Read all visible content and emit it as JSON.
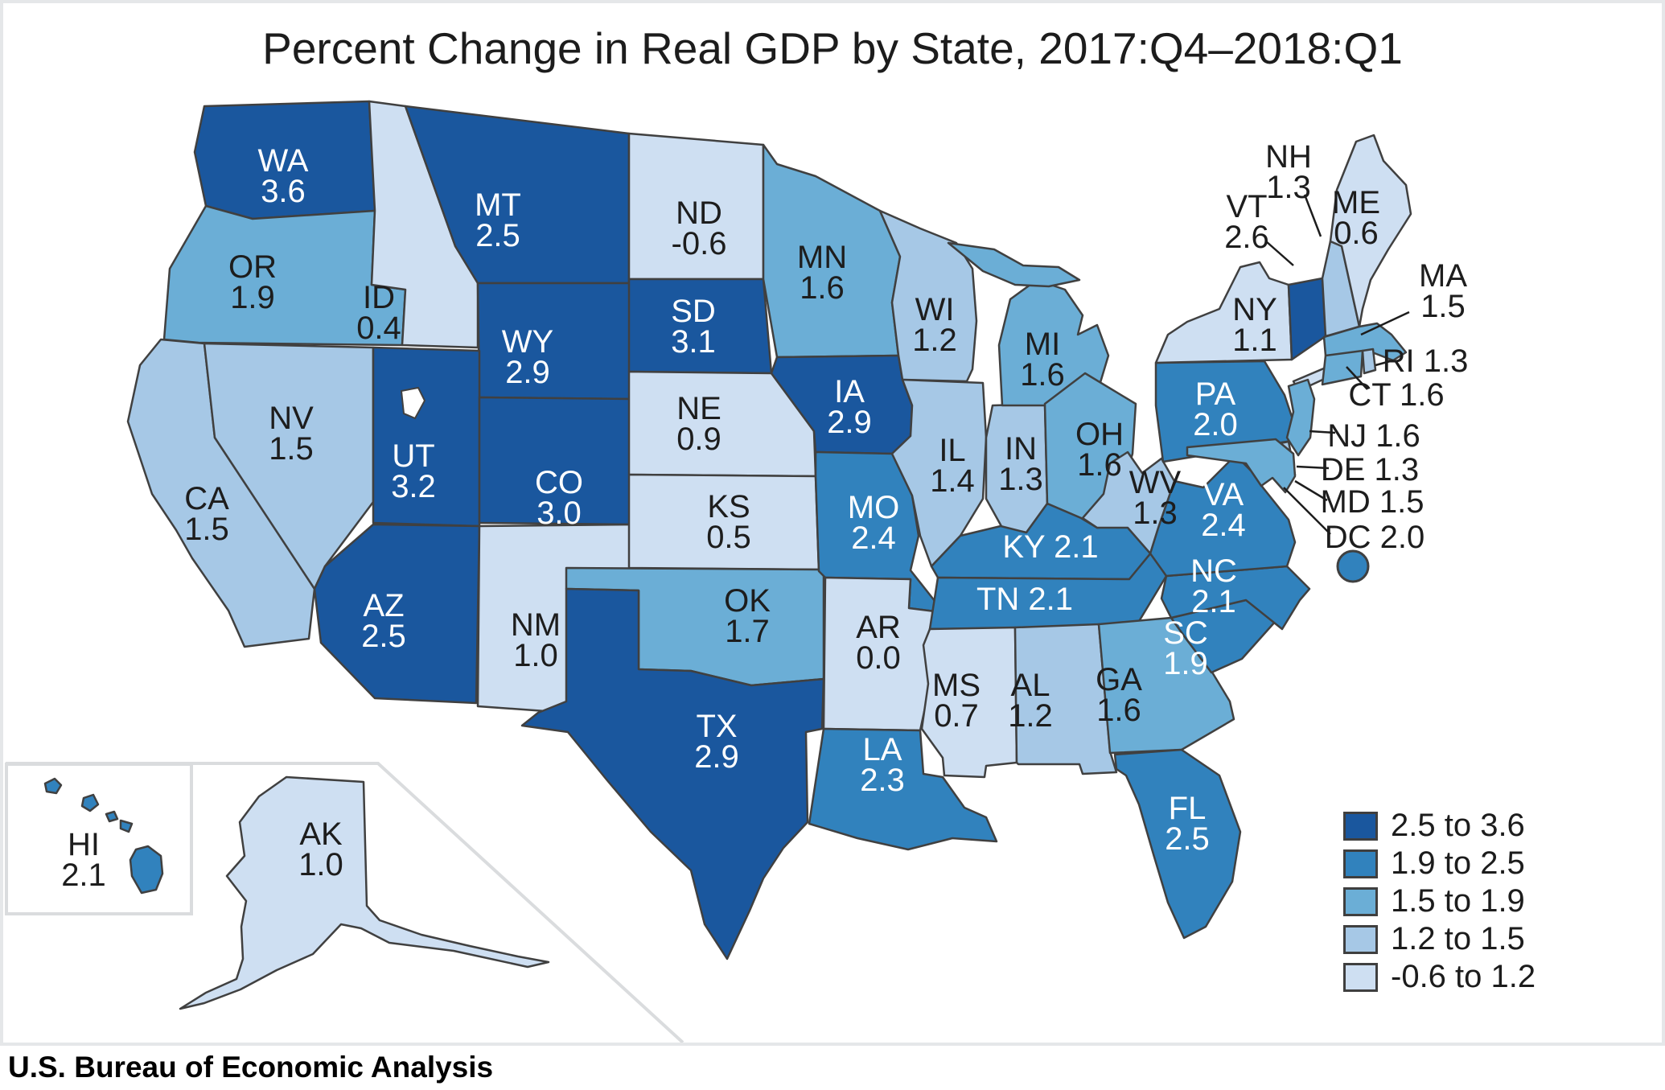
{
  "title": "Percent Change in Real GDP by State, 2017:Q4–2018:Q1",
  "source": "U.S. Bureau of Economic Analysis",
  "legend": {
    "buckets": [
      {
        "label": "2.5 to 3.6",
        "color": "#1A579E"
      },
      {
        "label": "1.9 to 2.5",
        "color": "#3182BD"
      },
      {
        "label": "1.5 to 1.9",
        "color": "#6BAED6"
      },
      {
        "label": "1.2 to 1.5",
        "color": "#A6C8E6"
      },
      {
        "label": "-0.6 to 1.2",
        "color": "#CEDFF2"
      }
    ],
    "state_border_color": "#404040",
    "label_color_on_dark": "#ffffff",
    "label_color_on_light": "#1d1d1d"
  },
  "map": {
    "states": [
      {
        "abbr": "WA",
        "value": "3.6",
        "bucket": 0
      },
      {
        "abbr": "OR",
        "value": "1.9",
        "bucket": 2
      },
      {
        "abbr": "CA",
        "value": "1.5",
        "bucket": 3
      },
      {
        "abbr": "NV",
        "value": "1.5",
        "bucket": 3
      },
      {
        "abbr": "ID",
        "value": "0.4",
        "bucket": 4
      },
      {
        "abbr": "MT",
        "value": "2.5",
        "bucket": 0
      },
      {
        "abbr": "WY",
        "value": "2.9",
        "bucket": 0
      },
      {
        "abbr": "UT",
        "value": "3.2",
        "bucket": 0
      },
      {
        "abbr": "CO",
        "value": "3.0",
        "bucket": 0
      },
      {
        "abbr": "AZ",
        "value": "2.5",
        "bucket": 0
      },
      {
        "abbr": "NM",
        "value": "1.0",
        "bucket": 4
      },
      {
        "abbr": "ND",
        "value": "-0.6",
        "bucket": 4
      },
      {
        "abbr": "SD",
        "value": "3.1",
        "bucket": 0
      },
      {
        "abbr": "NE",
        "value": "0.9",
        "bucket": 4
      },
      {
        "abbr": "KS",
        "value": "0.5",
        "bucket": 4
      },
      {
        "abbr": "OK",
        "value": "1.7",
        "bucket": 2
      },
      {
        "abbr": "TX",
        "value": "2.9",
        "bucket": 0
      },
      {
        "abbr": "MN",
        "value": "1.6",
        "bucket": 2
      },
      {
        "abbr": "IA",
        "value": "2.9",
        "bucket": 0
      },
      {
        "abbr": "MO",
        "value": "2.4",
        "bucket": 1
      },
      {
        "abbr": "AR",
        "value": "0.0",
        "bucket": 4
      },
      {
        "abbr": "LA",
        "value": "2.3",
        "bucket": 1
      },
      {
        "abbr": "WI",
        "value": "1.2",
        "bucket": 3
      },
      {
        "abbr": "IL",
        "value": "1.4",
        "bucket": 3
      },
      {
        "abbr": "IN",
        "value": "1.3",
        "bucket": 3
      },
      {
        "abbr": "MI",
        "value": "1.6",
        "bucket": 2
      },
      {
        "abbr": "OH",
        "value": "1.6",
        "bucket": 2
      },
      {
        "abbr": "KY",
        "value": "2.1",
        "bucket": 1
      },
      {
        "abbr": "TN",
        "value": "2.1",
        "bucket": 1
      },
      {
        "abbr": "MS",
        "value": "0.7",
        "bucket": 4
      },
      {
        "abbr": "AL",
        "value": "1.2",
        "bucket": 3
      },
      {
        "abbr": "GA",
        "value": "1.6",
        "bucket": 2
      },
      {
        "abbr": "FL",
        "value": "2.5",
        "bucket": 1
      },
      {
        "abbr": "SC",
        "value": "1.9",
        "bucket": 1
      },
      {
        "abbr": "NC",
        "value": "2.1",
        "bucket": 1
      },
      {
        "abbr": "VA",
        "value": "2.4",
        "bucket": 1
      },
      {
        "abbr": "WV",
        "value": "1.3",
        "bucket": 3
      },
      {
        "abbr": "PA",
        "value": "2.0",
        "bucket": 1
      },
      {
        "abbr": "NY",
        "value": "1.1",
        "bucket": 4
      },
      {
        "abbr": "NJ",
        "value": "1.6",
        "bucket": 2
      },
      {
        "abbr": "DE",
        "value": "1.3",
        "bucket": 3
      },
      {
        "abbr": "MD",
        "value": "1.5",
        "bucket": 2
      },
      {
        "abbr": "DC",
        "value": "2.0",
        "bucket": 1
      },
      {
        "abbr": "VT",
        "value": "2.6",
        "bucket": 0
      },
      {
        "abbr": "NH",
        "value": "1.3",
        "bucket": 3
      },
      {
        "abbr": "MA",
        "value": "1.5",
        "bucket": 2
      },
      {
        "abbr": "RI",
        "value": "1.3",
        "bucket": 3
      },
      {
        "abbr": "CT",
        "value": "1.6",
        "bucket": 2
      },
      {
        "abbr": "ME",
        "value": "0.6",
        "bucket": 4
      },
      {
        "abbr": "AK",
        "value": "1.0",
        "bucket": 4
      },
      {
        "abbr": "HI",
        "value": "2.1",
        "bucket": 1
      }
    ]
  }
}
